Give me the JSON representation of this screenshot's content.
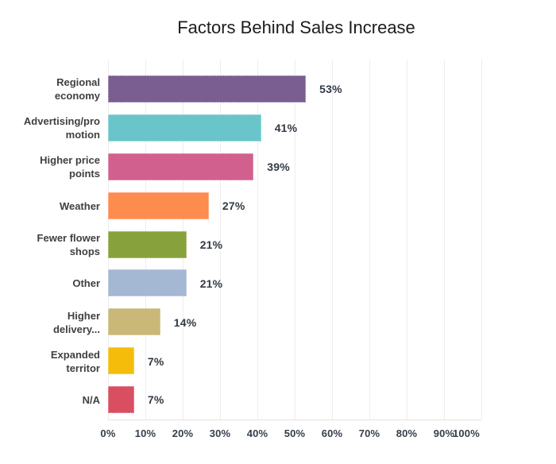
{
  "chart_data": {
    "type": "bar",
    "orientation": "horizontal",
    "title": "Factors Behind Sales Increase",
    "categories": [
      "Regional economy",
      "Advertising/promotion",
      "Higher price points",
      "Weather",
      "Fewer flower shops",
      "Other",
      "Higher delivery...",
      "Expanded territor",
      "N/A"
    ],
    "category_label_lines": [
      [
        "Regional",
        "economy"
      ],
      [
        "Advertising/pro",
        "motion"
      ],
      [
        "Higher price",
        "points"
      ],
      [
        "Weather"
      ],
      [
        "Fewer flower",
        "shops"
      ],
      [
        "Other"
      ],
      [
        "Higher",
        "delivery..."
      ],
      [
        "Expanded",
        "territor"
      ],
      [
        "N/A"
      ]
    ],
    "values": [
      53,
      41,
      39,
      27,
      21,
      21,
      14,
      7,
      7
    ],
    "value_labels": [
      "53%",
      "41%",
      "39%",
      "27%",
      "21%",
      "21%",
      "14%",
      "7%",
      "7%"
    ],
    "bar_colors": [
      "#7a5e92",
      "#6ac5ca",
      "#d2608e",
      "#fd8c4e",
      "#87a23c",
      "#a4b7d3",
      "#c9b878",
      "#f5bd0a",
      "#da4e62"
    ],
    "x_ticks": [
      "0%",
      "10%",
      "20%",
      "30%",
      "40%",
      "50%",
      "60%",
      "70%",
      "80%",
      "90%",
      "100%"
    ],
    "xlabel": "",
    "ylabel": "",
    "xlim": [
      0,
      100
    ],
    "grid": "vertical-only",
    "legend": "none",
    "colors": {
      "background": "#ffffff",
      "title": "#1c1c1c",
      "category_label": "#404040",
      "value_label": "#333a45",
      "tick_label": "#343f4b",
      "gridline": "#ededed",
      "axis_line": "#e3e3e3"
    }
  }
}
